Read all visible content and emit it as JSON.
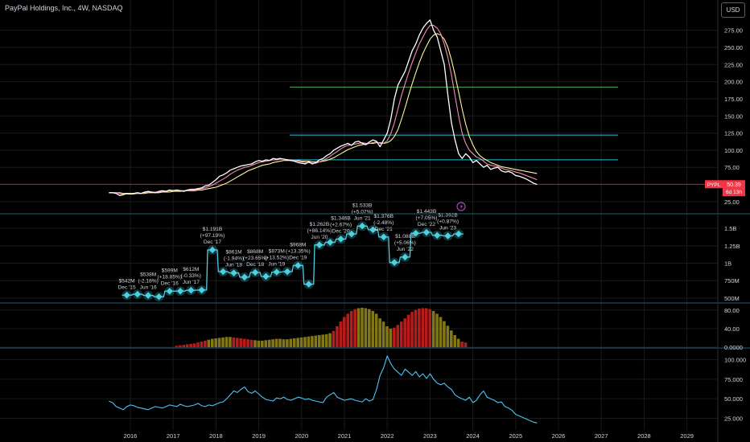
{
  "header": {
    "title": "PayPal Holdings, Inc., 4W, NASDAQ",
    "currency": "USD"
  },
  "price_marker": {
    "symbol": "PYPL",
    "price": "50.39",
    "countdown": "6d 13h"
  },
  "colors": {
    "background": "#000000",
    "grid": "#1a1a1a",
    "axis_text": "#d1d4dc",
    "price_line": "#ffffff",
    "ma_fast": "#f48fb1",
    "ma_slow": "#fff59d",
    "level_green": "#4caf50",
    "level_teal": "#26c6da",
    "revenue": "#4dd0e1",
    "hist_red": "#b71c1c",
    "hist_olive": "#827717",
    "indicator_line": "#4fc3f7",
    "marker_red": "#f23645",
    "divider": "#1e5f6b"
  },
  "chart_data": [
    {
      "type": "line",
      "pane": "price",
      "x_start": "2015-07",
      "x_step_months": 1,
      "series": [
        {
          "values": [
            38,
            38,
            37,
            34,
            35,
            37,
            36,
            37,
            38,
            37,
            39,
            40,
            39,
            38,
            40,
            41,
            40,
            42,
            41,
            42,
            41,
            40,
            42,
            43,
            43,
            44,
            45,
            48,
            49,
            53,
            57,
            62,
            64,
            67,
            71,
            73,
            75,
            77,
            78,
            79,
            80,
            83,
            85,
            84,
            86,
            85,
            88,
            87,
            88,
            87,
            86,
            85,
            84,
            82,
            81,
            80,
            83,
            80,
            82,
            86,
            88,
            92,
            95,
            100,
            103,
            106,
            108,
            110,
            107,
            112,
            113,
            110,
            108,
            112,
            115,
            113,
            105,
            115,
            125,
            145,
            175,
            195,
            205,
            215,
            230,
            245,
            255,
            268,
            278,
            285,
            290,
            275,
            265,
            245,
            225,
            180,
            140,
            115,
            95,
            88,
            95,
            90,
            82,
            85,
            80,
            75,
            78,
            72,
            74,
            75,
            70,
            68,
            69,
            67,
            63,
            62,
            60,
            58,
            55,
            52,
            50
          ]
        },
        {
          "name": "ma_fast",
          "values": [
            38,
            38,
            38,
            37,
            36,
            36,
            36,
            36,
            37,
            37,
            38,
            39,
            39,
            39,
            39,
            40,
            40,
            41,
            41,
            41,
            41,
            41,
            41,
            42,
            42,
            43,
            44,
            45,
            47,
            49,
            52,
            55,
            58,
            61,
            65,
            68,
            71,
            73,
            75,
            76,
            78,
            80,
            82,
            83,
            84,
            85,
            86,
            86,
            87,
            87,
            86,
            86,
            85,
            84,
            83,
            82,
            82,
            81,
            81,
            83,
            85,
            88,
            91,
            95,
            98,
            102,
            105,
            107,
            108,
            109,
            110,
            111,
            110,
            110,
            111,
            112,
            110,
            110,
            114,
            124,
            140,
            160,
            180,
            197,
            213,
            228,
            242,
            255,
            265,
            275,
            282,
            282,
            278,
            270,
            255,
            235,
            210,
            180,
            150,
            125,
            110,
            100,
            95,
            90,
            88,
            84,
            80,
            78,
            77,
            76,
            74,
            72,
            71,
            70,
            68,
            67,
            65,
            63,
            61,
            59,
            57
          ]
        },
        {
          "name": "ma_slow",
          "values": [
            38,
            38,
            38,
            38,
            37,
            37,
            37,
            37,
            37,
            37,
            37,
            38,
            38,
            38,
            38,
            39,
            39,
            39,
            40,
            40,
            40,
            41,
            41,
            41,
            41,
            42,
            42,
            43,
            44,
            45,
            46,
            48,
            50,
            52,
            55,
            58,
            61,
            64,
            67,
            70,
            72,
            74,
            76,
            78,
            79,
            80,
            82,
            83,
            84,
            85,
            85,
            85,
            85,
            85,
            84,
            84,
            84,
            83,
            83,
            83,
            84,
            85,
            87,
            89,
            92,
            95,
            98,
            101,
            103,
            105,
            107,
            108,
            109,
            110,
            110,
            111,
            111,
            110,
            111,
            114,
            120,
            130,
            145,
            162,
            180,
            197,
            213,
            228,
            241,
            252,
            262,
            268,
            270,
            268,
            262,
            250,
            232,
            210,
            185,
            160,
            138,
            120,
            108,
            98,
            92,
            88,
            85,
            82,
            80,
            78,
            76,
            75,
            74,
            73,
            72,
            71,
            70,
            69,
            68,
            67,
            66
          ]
        }
      ],
      "levels": [
        192,
        122,
        86
      ],
      "current_price": 50.39,
      "y_ticks": [
        "275.00",
        "250.00",
        "225.00",
        "200.00",
        "175.00",
        "150.00",
        "125.00",
        "100.00",
        "75.00",
        "25.00"
      ],
      "ylim": [
        12,
        305
      ]
    },
    {
      "type": "line",
      "pane": "revenue",
      "ylim": [
        430,
        1640
      ],
      "y_ticks": [
        "1.5B",
        "1.25B",
        "1B",
        "750M",
        "500M"
      ],
      "x_start": "2015-12",
      "x_step_months": 6,
      "values": [
        542,
        538,
        599,
        612,
        1191,
        861,
        868,
        873,
        968,
        1262,
        1346,
        1533,
        1376,
        1088,
        1443,
        1392
      ],
      "points": [
        {
          "v": 542,
          "lbl": "$542M",
          "d": "Dec '15"
        },
        {
          "v": 555,
          "lbl": ""
        },
        {
          "v": 538,
          "lbl": "$538M (-2.18%)",
          "d": "Jun '16"
        },
        {
          "v": 520,
          "lbl": ""
        },
        {
          "v": 599,
          "lbl": "$599M (+18.85%)",
          "d": "Dec '16"
        },
        {
          "v": 600,
          "lbl": ""
        },
        {
          "v": 612,
          "lbl": "$612M (-0.33%)",
          "d": "Jun '17"
        },
        {
          "v": 615,
          "lbl": ""
        },
        {
          "v": 1191,
          "lbl": "$1.191B (+97.19%)",
          "d": "Dec '17"
        },
        {
          "v": 880,
          "lbl": ""
        },
        {
          "v": 861,
          "lbl": "$861M (-1.94%)",
          "d": "Jun '18"
        },
        {
          "v": 800,
          "lbl": ""
        },
        {
          "v": 868,
          "lbl": "$868M (+23.65%)",
          "d": "Dec '18"
        },
        {
          "v": 810,
          "lbl": ""
        },
        {
          "v": 873,
          "lbl": "$873M (+13.52%)",
          "d": "Jun '19"
        },
        {
          "v": 880,
          "lbl": ""
        },
        {
          "v": 968,
          "lbl": "$968M (+13.35%)",
          "d": "Dec '19"
        },
        {
          "v": 700,
          "lbl": ""
        },
        {
          "v": 1262,
          "lbl": "$1.262B (+86.14%)",
          "d": "Jun '20"
        },
        {
          "v": 1300,
          "lbl": ""
        },
        {
          "v": 1346,
          "lbl": "$1.346B (+2.67%)",
          "d": "Dec '20"
        },
        {
          "v": 1420,
          "lbl": ""
        },
        {
          "v": 1533,
          "lbl": "$1.533B (+5.07%)",
          "d": "Jun '21"
        },
        {
          "v": 1480,
          "lbl": ""
        },
        {
          "v": 1376,
          "lbl": "$1.376B (-2.48%)",
          "d": "Dec '21"
        },
        {
          "v": 1010,
          "lbl": ""
        },
        {
          "v": 1088,
          "lbl": "$1.088B (+5.06%)",
          "d": "Jun '22"
        },
        {
          "v": 1430,
          "lbl": ""
        },
        {
          "v": 1443,
          "lbl": "$1.443B (+7.05%)",
          "d": "Dec '22"
        },
        {
          "v": 1400,
          "lbl": ""
        },
        {
          "v": 1392,
          "lbl": "$1.392B (+0.87%)",
          "d": "Jun '23"
        },
        {
          "v": 1420,
          "lbl": ""
        }
      ]
    },
    {
      "type": "bar",
      "pane": "histogram",
      "ylim": [
        0,
        90
      ],
      "y_ticks": [
        "80.00",
        "40.00",
        "0.0000"
      ],
      "x_start": "2017-02",
      "x_step_months": 1,
      "values": [
        3,
        4,
        5,
        6,
        7,
        8,
        10,
        12,
        14,
        16,
        18,
        19,
        20,
        21,
        22,
        22,
        21,
        20,
        19,
        18,
        17,
        16,
        15,
        14,
        14,
        15,
        16,
        17,
        18,
        18,
        17,
        17,
        18,
        19,
        20,
        21,
        22,
        23,
        24,
        25,
        26,
        27,
        28,
        30,
        35,
        45,
        55,
        65,
        72,
        78,
        82,
        84,
        85,
        84,
        82,
        78,
        72,
        62,
        55,
        45,
        40,
        42,
        48,
        55,
        62,
        70,
        76,
        80,
        83,
        84,
        84,
        82,
        78,
        72,
        65,
        56,
        46,
        36,
        26,
        18,
        12,
        10
      ],
      "olive_bars": [
        9,
        10,
        11,
        12,
        13,
        14,
        15,
        22,
        23,
        24,
        25,
        26,
        27,
        28,
        29,
        30,
        31,
        32,
        33,
        34,
        35,
        36,
        37,
        38,
        39,
        40,
        41,
        42,
        43,
        51,
        52,
        53,
        54,
        55,
        56,
        57,
        58,
        59,
        60,
        72,
        73,
        74,
        75,
        76,
        77,
        78,
        79
      ]
    },
    {
      "type": "line",
      "pane": "indicator",
      "ylim": [
        10,
        112
      ],
      "y_ticks": [
        "100.000",
        "75.000",
        "50.000",
        "25.000"
      ],
      "x_start": "2015-07",
      "x_step_months": 1,
      "values": [
        47,
        45,
        40,
        38,
        36,
        40,
        42,
        41,
        39,
        38,
        37,
        36,
        38,
        40,
        39,
        38,
        40,
        42,
        41,
        40,
        43,
        41,
        40,
        41,
        42,
        44,
        41,
        40,
        42,
        41,
        43,
        45,
        46,
        50,
        55,
        60,
        58,
        62,
        65,
        59,
        57,
        60,
        56,
        52,
        49,
        48,
        47,
        51,
        50,
        52,
        49,
        48,
        50,
        52,
        51,
        49,
        50,
        48,
        47,
        46,
        45,
        52,
        55,
        58,
        52,
        50,
        48,
        49,
        50,
        48,
        47,
        46,
        50,
        47,
        49,
        62,
        80,
        90,
        105,
        95,
        88,
        84,
        80,
        88,
        84,
        80,
        85,
        78,
        82,
        76,
        82,
        75,
        70,
        68,
        70,
        65,
        62,
        55,
        52,
        50,
        48,
        52,
        45,
        48,
        55,
        60,
        52,
        50,
        48,
        45,
        46,
        40,
        38,
        35,
        30,
        28,
        26,
        24,
        22,
        20,
        19
      ]
    },
    {
      "type": "line",
      "pane": "time_axis",
      "x_labels": [
        "2016",
        "2017",
        "2018",
        "2019",
        "2020",
        "2021",
        "2022",
        "2023",
        "2024",
        "2025",
        "2026",
        "2027",
        "2028",
        "2029"
      ]
    }
  ]
}
